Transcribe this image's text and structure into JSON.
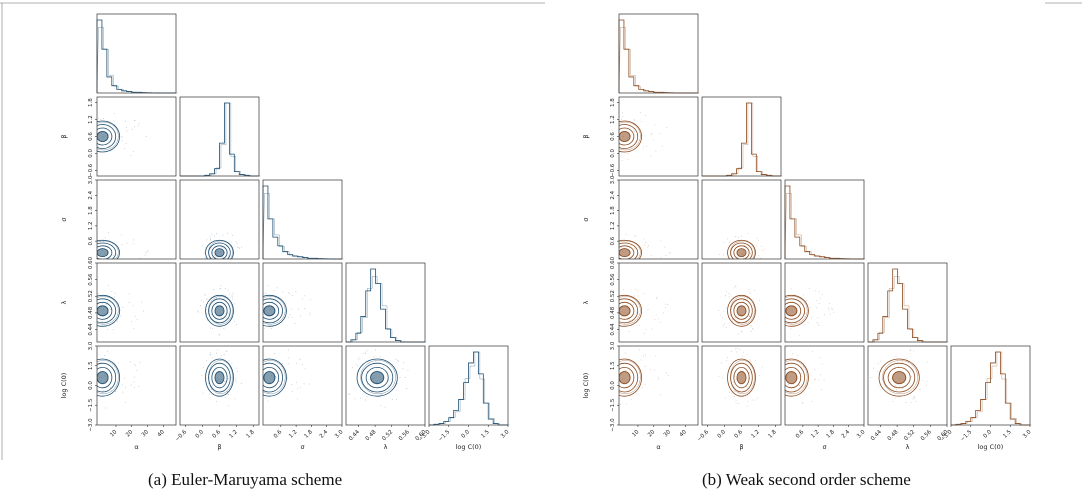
{
  "captions": {
    "a": "(a) Euler-Maruyama scheme",
    "b": "(b) Weak second order scheme"
  },
  "colors": {
    "a": "#1f4e70",
    "b": "#8a4a1e"
  },
  "chart_data": {
    "type": "corner",
    "parameters": [
      "α",
      "β",
      "σ",
      "λ",
      "log C(0)"
    ],
    "ranges": {
      "α": [
        -2,
        48
      ],
      "β": [
        -0.8,
        2.0
      ],
      "σ": [
        -0.1,
        3.0
      ],
      "λ": [
        0.41,
        0.6
      ],
      "log C(0)": [
        -3.0,
        3.0
      ]
    },
    "ticks": {
      "α": [
        {
          "v": 10,
          "t": "10"
        },
        {
          "v": 20,
          "t": "20"
        },
        {
          "v": 30,
          "t": "30"
        },
        {
          "v": 40,
          "t": "40"
        }
      ],
      "β": [
        {
          "v": -0.6,
          "t": "−0.6"
        },
        {
          "v": 0.0,
          "t": "0.0"
        },
        {
          "v": 0.6,
          "t": "0.6"
        },
        {
          "v": 1.2,
          "t": "1.2"
        },
        {
          "v": 1.8,
          "t": "1.8"
        }
      ],
      "σ": [
        {
          "v": 0.6,
          "t": "0.6"
        },
        {
          "v": 1.2,
          "t": "1.2"
        },
        {
          "v": 1.8,
          "t": "1.8"
        },
        {
          "v": 2.4,
          "t": "2.4"
        },
        {
          "v": 3.0,
          "t": "3.0"
        }
      ],
      "λ": [
        {
          "v": 0.44,
          "t": "0.44"
        },
        {
          "v": 0.48,
          "t": "0.48"
        },
        {
          "v": 0.52,
          "t": "0.52"
        },
        {
          "v": 0.56,
          "t": "0.56"
        },
        {
          "v": 0.6,
          "t": "0.60"
        }
      ],
      "log C(0)": [
        {
          "v": -3.0,
          "t": "−3.0"
        },
        {
          "v": -1.5,
          "t": "−1.5"
        },
        {
          "v": 0.0,
          "t": "0.0"
        },
        {
          "v": 1.5,
          "t": "1.5"
        },
        {
          "v": 3.0,
          "t": "3.0"
        }
      ]
    },
    "modes": {
      "α": 1.5,
      "β": 0.6,
      "σ": 0.15,
      "λ": 0.485,
      "log C(0)": 0.6
    },
    "histograms": {
      "α": [
        100,
        60,
        22,
        10,
        5,
        3,
        2,
        1,
        1,
        0.5,
        0.3,
        0.2,
        0.1,
        0,
        0,
        0
      ],
      "β": [
        0,
        0,
        0,
        0,
        0,
        1,
        3,
        10,
        45,
        100,
        30,
        6,
        2,
        1,
        0,
        0
      ],
      "σ": [
        100,
        55,
        30,
        18,
        10,
        6,
        4,
        3,
        2,
        1,
        1,
        0.5,
        0.3,
        0.2,
        0,
        0
      ],
      "λ": [
        0,
        3,
        12,
        35,
        70,
        100,
        80,
        45,
        18,
        6,
        2,
        0,
        0,
        0,
        0,
        0
      ],
      "log C(0)": [
        0,
        1,
        2,
        5,
        10,
        20,
        35,
        58,
        85,
        100,
        70,
        30,
        8,
        2,
        0,
        0
      ]
    },
    "panels": [
      "a",
      "b"
    ]
  }
}
